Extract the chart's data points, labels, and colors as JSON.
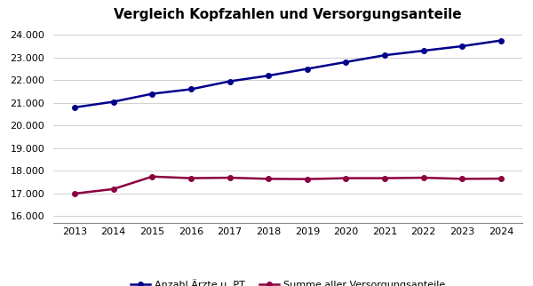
{
  "title": "Vergleich Kopfzahlen und Versorgungsanteile",
  "years": [
    2013,
    2014,
    2015,
    2016,
    2017,
    2018,
    2019,
    2020,
    2021,
    2022,
    2023,
    2024
  ],
  "series1": {
    "label": "Anzahl Ärzte u. PT",
    "color": "#00008B",
    "values": [
      20800,
      21050,
      21400,
      21600,
      21950,
      22200,
      22500,
      22800,
      23100,
      23300,
      23500,
      23750
    ]
  },
  "series2": {
    "label": "Summe aller Versorgungsanteile",
    "color": "#8B0040",
    "values": [
      17000,
      17200,
      17750,
      17680,
      17700,
      17650,
      17640,
      17680,
      17680,
      17700,
      17650,
      17660
    ]
  },
  "ylim": [
    15700,
    24400
  ],
  "yticks": [
    16000,
    17000,
    18000,
    19000,
    20000,
    21000,
    22000,
    23000,
    24000
  ],
  "background_color": "#ffffff",
  "grid_color": "#d0d0d0",
  "title_fontsize": 11,
  "legend_fontsize": 8,
  "tick_fontsize": 8
}
